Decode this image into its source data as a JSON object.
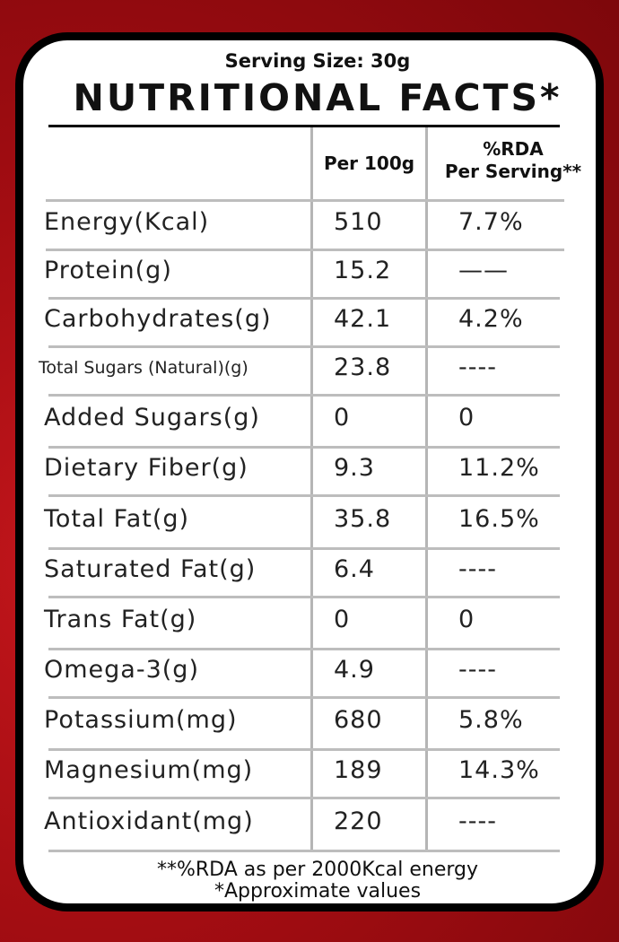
{
  "serving_size": "Serving Size: 30g",
  "title": "NUTRITIONAL FACTS*",
  "headers": {
    "per_100g": "Per 100g",
    "rda_line1": "%RDA",
    "rda_line2": "Per Serving**"
  },
  "rows": [
    {
      "name": "Energy(Kcal)",
      "per100": "510",
      "rda": "7.7%"
    },
    {
      "name": "Protein(g)",
      "per100": "15.2",
      "rda": "——"
    },
    {
      "name": "Carbohydrates(g)",
      "per100": "42.1",
      "rda": "4.2%"
    },
    {
      "name": "Total Sugars (Natural)(g)",
      "per100": "23.8",
      "rda": "----"
    },
    {
      "name": "Added Sugars(g)",
      "per100": "0",
      "rda": "0"
    },
    {
      "name": "Dietary Fiber(g)",
      "per100": "9.3",
      "rda": "11.2%"
    },
    {
      "name": "Total Fat(g)",
      "per100": "35.8",
      "rda": "16.5%"
    },
    {
      "name": "Saturated Fat(g)",
      "per100": "6.4",
      "rda": "----"
    },
    {
      "name": "Trans Fat(g)",
      "per100": "0",
      "rda": "0"
    },
    {
      "name": "Omega-3(g)",
      "per100": "4.9",
      "rda": "----"
    },
    {
      "name": "Potassium(mg)",
      "per100": "680",
      "rda": "5.8%"
    },
    {
      "name": "Magnesium(mg)",
      "per100": "189",
      "rda": "14.3%"
    },
    {
      "name": "Antioxidant(mg)",
      "per100": "220",
      "rda": "----"
    }
  ],
  "footnotes": [
    "**%RDA as per 2000Kcal energy",
    "*Approximate values"
  ]
}
